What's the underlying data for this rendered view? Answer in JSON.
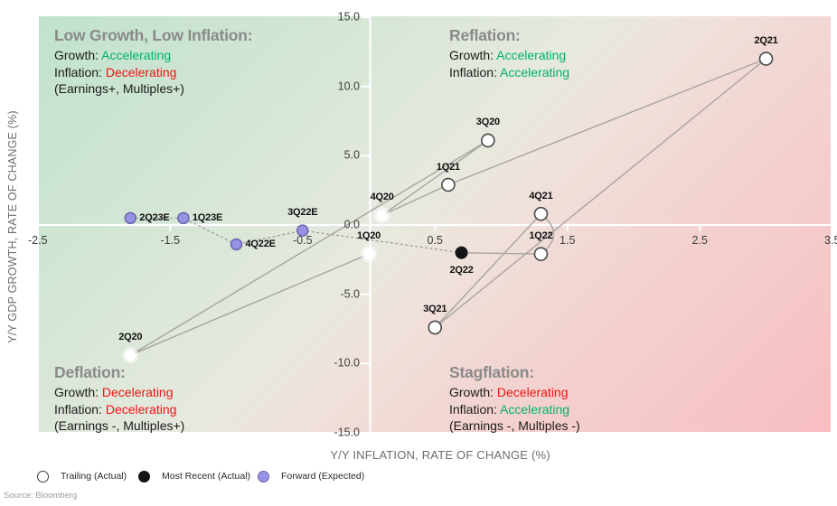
{
  "source_note": "Source: Bloomberg",
  "legend": {
    "items": [
      {
        "label": "Trailing (Actual)",
        "marker": "trailing-white-circle"
      },
      {
        "label": "Most Recent (Actual)",
        "marker": "most-recent-black-circle"
      },
      {
        "label": "Forward (Expected)",
        "marker": "forward-purple-circle"
      }
    ]
  },
  "quadrants": [
    {
      "id": "low-growth-low-inflation",
      "position": "top-left",
      "title": "Low Growth, Low Inflation:",
      "lines": [
        [
          {
            "t": "Growth: "
          },
          {
            "t": "Accelerating",
            "c": "green"
          }
        ],
        [
          {
            "t": "Inflation: "
          },
          {
            "t": "Decelerating",
            "c": "red"
          }
        ],
        [
          {
            "t": "(Earnings+, Multiples+)"
          }
        ]
      ]
    },
    {
      "id": "reflation",
      "position": "top-right",
      "title": "Reflation:",
      "lines": [
        [
          {
            "t": "Growth: "
          },
          {
            "t": "Accelerating",
            "c": "green"
          }
        ],
        [
          {
            "t": "Inflation: "
          },
          {
            "t": "Accelerating",
            "c": "green"
          }
        ]
      ]
    },
    {
      "id": "deflation",
      "position": "bottom-left",
      "title": "Deflation:",
      "lines": [
        [
          {
            "t": "Growth: "
          },
          {
            "t": "Decelerating",
            "c": "red"
          }
        ],
        [
          {
            "t": "Inflation: "
          },
          {
            "t": "Decelerating",
            "c": "red"
          }
        ],
        [
          {
            "t": "(Earnings -, Multiples+)"
          }
        ]
      ]
    },
    {
      "id": "stagflation",
      "position": "bottom-right",
      "title": "Stagflation:",
      "lines": [
        [
          {
            "t": "Growth: "
          },
          {
            "t": "Decelerating",
            "c": "red"
          }
        ],
        [
          {
            "t": "Inflation: "
          },
          {
            "t": "Accelerating",
            "c": "green"
          }
        ],
        [
          {
            "t": "(Earnings -, Multiples -)"
          }
        ]
      ]
    }
  ],
  "colors": {
    "accelerating_green": "#00b169",
    "decelerating_red": "#f01414",
    "quadrant_title_gray": "#8a8a8a",
    "trailing_fill": "#ffffff",
    "trailing_border": "#4a4a4a",
    "most_recent_fill": "#141414",
    "forward_fill": "#9792e3",
    "forward_border": "#6a67ac",
    "path_line": "#a8a4a1",
    "axis_line": "#ffffff",
    "bg_green": "#c4e3d0",
    "bg_pink": "#f8bfc2"
  },
  "chart_data": {
    "type": "scatter",
    "title": "",
    "xlabel": "Y/Y INFLATION, RATE OF CHANGE (%)",
    "ylabel": "Y/Y GDP GROWTH, RATE OF CHANGE (%)",
    "xlim": [
      -2.5,
      3.55
    ],
    "ylim": [
      -15.0,
      15.0
    ],
    "grid": false,
    "legend_position": "bottom-left",
    "x_ticks": [
      {
        "v": -2.5,
        "label": "-2.5"
      },
      {
        "v": -1.5,
        "label": "-1.5"
      },
      {
        "v": -0.5,
        "label": "-0.5"
      },
      {
        "v": 0.5,
        "label": "0.5"
      },
      {
        "v": 1.5,
        "label": "1.5"
      },
      {
        "v": 2.5,
        "label": "2.5"
      },
      {
        "v": 3.5,
        "label": "3.5"
      }
    ],
    "y_ticks": [
      {
        "v": 15,
        "label": "15.0"
      },
      {
        "v": 10,
        "label": "10.0"
      },
      {
        "v": 5,
        "label": "5.0"
      },
      {
        "v": 0,
        "label": "0.0"
      },
      {
        "v": -5,
        "label": "-5.0"
      },
      {
        "v": -10,
        "label": "-10.0"
      },
      {
        "v": -15,
        "label": "-15.0"
      }
    ],
    "series": [
      {
        "name": "Trailing (Actual)",
        "marker": "white-circle",
        "points": [
          {
            "label": "1Q20",
            "x": 0.0,
            "y": -2.1,
            "style": "glow",
            "label_pos": "above"
          },
          {
            "label": "2Q20",
            "x": -1.8,
            "y": -9.4,
            "style": "glow",
            "label_pos": "above"
          },
          {
            "label": "3Q20",
            "x": 0.9,
            "y": 6.1,
            "style": "outlined",
            "label_pos": "above"
          },
          {
            "label": "4Q20",
            "x": 0.1,
            "y": 0.7,
            "style": "glow",
            "label_pos": "above"
          },
          {
            "label": "1Q21",
            "x": 0.6,
            "y": 2.9,
            "style": "outlined",
            "label_pos": "above"
          },
          {
            "label": "2Q21",
            "x": 3.0,
            "y": 12.0,
            "style": "outlined",
            "label_pos": "above"
          },
          {
            "label": "3Q21",
            "x": 0.5,
            "y": -7.4,
            "style": "outlined",
            "label_pos": "above"
          },
          {
            "label": "4Q21",
            "x": 1.3,
            "y": 0.8,
            "style": "outlined",
            "label_pos": "above"
          },
          {
            "label": "1Q22",
            "x": 1.3,
            "y": -2.1,
            "style": "outlined",
            "label_pos": "above"
          }
        ]
      },
      {
        "name": "Most Recent (Actual)",
        "marker": "black-circle",
        "points": [
          {
            "label": "2Q22",
            "x": 0.7,
            "y": -2.0,
            "style": "black",
            "label_pos": "below"
          }
        ]
      },
      {
        "name": "Forward (Expected)",
        "marker": "purple-circle",
        "points": [
          {
            "label": "3Q22E",
            "x": -0.5,
            "y": -0.4,
            "style": "purple",
            "label_pos": "above"
          },
          {
            "label": "4Q22E",
            "x": -1.0,
            "y": -1.4,
            "style": "purple",
            "label_pos": "right"
          },
          {
            "label": "1Q23E",
            "x": -1.4,
            "y": 0.5,
            "style": "purple",
            "label_pos": "right"
          },
          {
            "label": "2Q23E",
            "x": -1.8,
            "y": 0.5,
            "style": "purple",
            "label_pos": "right"
          }
        ]
      }
    ],
    "path_solid": [
      "1Q20",
      "2Q20",
      "3Q20",
      "4Q20",
      "1Q21",
      "2Q21",
      "3Q21",
      "4Q21",
      "1Q22",
      "2Q22"
    ],
    "path_dashed": [
      "2Q22",
      "3Q22E",
      "4Q22E",
      "1Q23E",
      "2Q23E"
    ]
  }
}
